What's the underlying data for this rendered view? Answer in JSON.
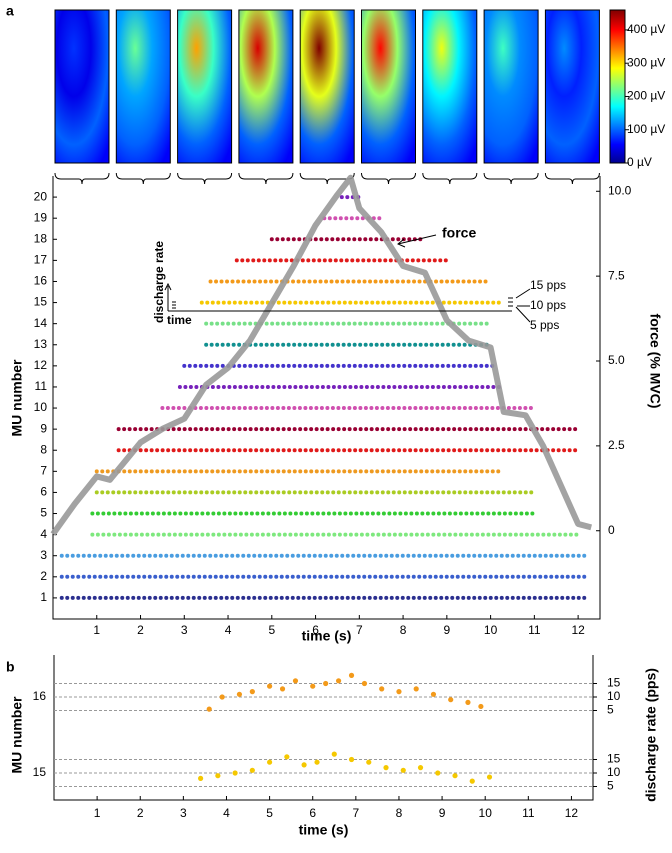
{
  "chart_data": [
    {
      "type": "heatmap-strip",
      "panel_label": "a",
      "values": [
        80,
        220,
        330,
        420,
        460,
        400,
        280,
        200,
        120
      ],
      "clim": [
        0,
        460
      ],
      "colorbar_ticks": [
        {
          "value": 0,
          "label": "0 µV"
        },
        {
          "value": 100,
          "label": "100 µV"
        },
        {
          "value": 200,
          "label": "200 µV"
        },
        {
          "value": 300,
          "label": "300 µV"
        },
        {
          "value": 400,
          "label": "400 µV"
        }
      ]
    },
    {
      "type": "raster",
      "xlabel": "time (s)",
      "ylabel": "MU number",
      "y2label": "force (% MVC)",
      "xlim": [
        0,
        12.5
      ],
      "xticks": [
        1,
        2,
        3,
        4,
        5,
        6,
        7,
        8,
        9,
        10,
        11,
        12
      ],
      "ylim": [
        0,
        21
      ],
      "yticks": [
        1,
        2,
        3,
        4,
        5,
        6,
        7,
        8,
        9,
        10,
        11,
        12,
        13,
        14,
        15,
        16,
        17,
        18,
        19,
        20
      ],
      "y2lim": [
        -2.6,
        10.45
      ],
      "y2ticks": [
        0,
        2.5,
        {
          "value": 5,
          "label": "5.0"
        },
        7.5,
        {
          "value": 10,
          "label": "10.0"
        }
      ],
      "units": [
        {
          "color": "#2b2f8f",
          "start": 0.2,
          "end": 12.2
        },
        {
          "color": "#3a5fcd",
          "start": 0.2,
          "end": 12.2
        },
        {
          "color": "#4a9de0",
          "start": 0.2,
          "end": 12.2
        },
        {
          "color": "#7ee87e",
          "start": 0.9,
          "end": 12.0
        },
        {
          "color": "#33cc33",
          "start": 0.9,
          "end": 11.0
        },
        {
          "color": "#aacc22",
          "start": 1.0,
          "end": 11.0
        },
        {
          "color": "#ee9a20",
          "start": 1.0,
          "end": 10.3
        },
        {
          "color": "#e01a1a",
          "start": 1.5,
          "end": 12.0
        },
        {
          "color": "#990033",
          "start": 1.5,
          "end": 12.0
        },
        {
          "color": "#d050b0",
          "start": 2.5,
          "end": 11.0
        },
        {
          "color": "#7722bb",
          "start": 2.9,
          "end": 10.2
        },
        {
          "color": "#4433cc",
          "start": 3.0,
          "end": 10.1
        },
        {
          "color": "#119090",
          "start": 3.5,
          "end": 10.0
        },
        {
          "color": "#77e088",
          "start": 3.5,
          "end": 10.0
        },
        {
          "color": "#f5c800",
          "start": 3.4,
          "end": 10.2
        },
        {
          "color": "#f39a1a",
          "start": 3.6,
          "end": 9.9
        },
        {
          "color": "#e01a1a",
          "start": 4.2,
          "end": 9.1
        },
        {
          "color": "#990033",
          "start": 5.0,
          "end": 8.5
        },
        {
          "color": "#d050b0",
          "start": 6.2,
          "end": 7.5
        },
        {
          "color": "#7722bb",
          "start": 6.6,
          "end": 7.0
        }
      ],
      "force": {
        "name": "force",
        "color": "#999999",
        "axis": "y2",
        "x": [
          0,
          0.5,
          1,
          1.3,
          2,
          2.5,
          3,
          3.5,
          4,
          4.5,
          5,
          5.5,
          6,
          6.5,
          6.8,
          7,
          7.5,
          8,
          8.5,
          9,
          9.5,
          10,
          10.3,
          10.8,
          11.2,
          12,
          12.3
        ],
        "values": [
          -0.1,
          0.8,
          1.6,
          1.5,
          2.6,
          3.0,
          3.3,
          4.3,
          4.8,
          5.6,
          6.7,
          7.8,
          9.0,
          9.9,
          10.4,
          9.5,
          8.8,
          7.8,
          7.6,
          6.2,
          5.6,
          5.4,
          3.5,
          3.4,
          2.5,
          0.2,
          0.1
        ]
      },
      "rate_axis_label": "discharge rate",
      "time_axis_label": "time",
      "rate_scale": [
        "15 pps",
        "10 pps",
        "5 pps"
      ]
    },
    {
      "type": "rate-rows",
      "panel_label": "b",
      "xlabel": "time (s)",
      "ylabel": "MU number",
      "y2label": "discharge rate (pps)",
      "xlim": [
        0,
        12.5
      ],
      "xticks": [
        1,
        2,
        3,
        4,
        5,
        6,
        7,
        8,
        9,
        10,
        11,
        12
      ],
      "rate_ticks": [
        15,
        10,
        5
      ],
      "series": [
        {
          "name": "16",
          "color": "#f39a1a",
          "x": [
            3.6,
            3.9,
            4.3,
            4.6,
            5.0,
            5.3,
            5.6,
            6.0,
            6.3,
            6.6,
            6.9,
            7.2,
            7.6,
            8.0,
            8.4,
            8.8,
            9.2,
            9.6,
            9.9
          ],
          "values": [
            5.5,
            10,
            11,
            12,
            14,
            13,
            16,
            14,
            15,
            16,
            18,
            15,
            13,
            12,
            13,
            11,
            9,
            8,
            6.5
          ]
        },
        {
          "name": "15",
          "color": "#f5c800",
          "x": [
            3.4,
            3.8,
            4.2,
            4.6,
            5.0,
            5.4,
            5.8,
            6.1,
            6.5,
            6.9,
            7.3,
            7.7,
            8.1,
            8.5,
            8.9,
            9.3,
            9.7,
            10.1
          ],
          "values": [
            8,
            9,
            10,
            11,
            14,
            16,
            13,
            14,
            17,
            15,
            14,
            12,
            11,
            12,
            10,
            9,
            7,
            8.5
          ]
        }
      ]
    }
  ]
}
